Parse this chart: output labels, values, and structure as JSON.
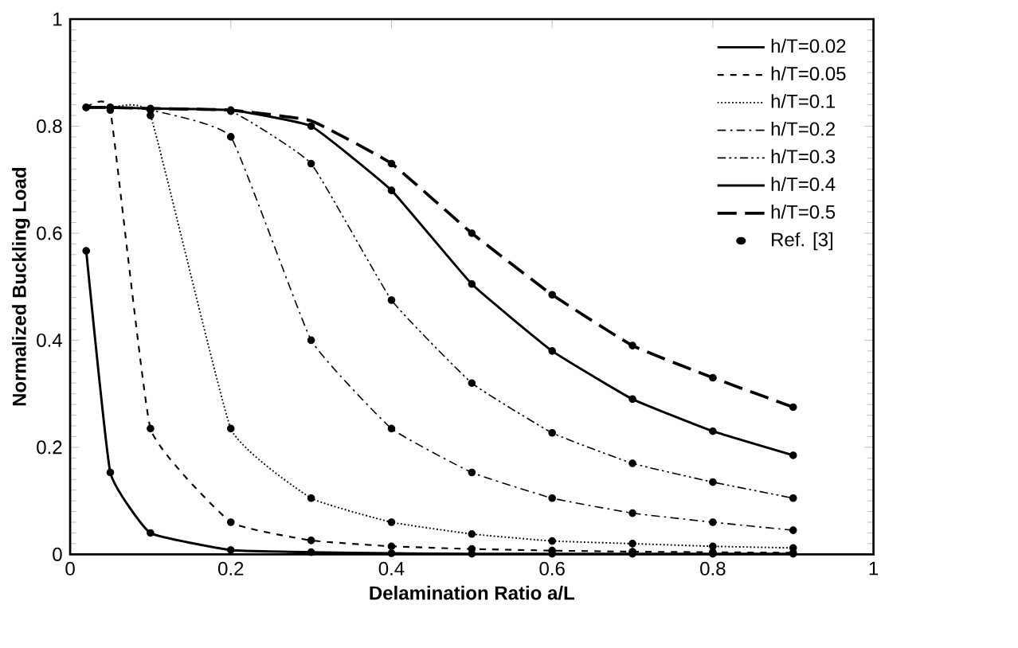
{
  "chart_data": {
    "type": "line",
    "xlabel": "Delamination Ratio a/L",
    "ylabel": "Normalized Buckling Load",
    "x": [
      0.02,
      0.05,
      0.1,
      0.2,
      0.3,
      0.4,
      0.5,
      0.6,
      0.7,
      0.8,
      0.9
    ],
    "series": [
      {
        "name": "h/T=0.02",
        "color": "#000000",
        "line_style": "solid",
        "values": [
          0.835,
          0.835,
          0.833,
          0.83,
          0.8,
          0.68,
          0.505,
          0.38,
          0.29,
          0.23,
          0.185
        ]
      },
      {
        "name": "h/T=0.05",
        "color": "#000000",
        "line_style": "dashed",
        "values": [
          0.835,
          0.83,
          0.235,
          0.06,
          0.026,
          0.015,
          0.01,
          0.007,
          0.005,
          0.004,
          0.003
        ]
      },
      {
        "name": "h/T=0.1",
        "color": "#000000",
        "line_style": "dotted",
        "values": [
          0.835,
          0.835,
          0.82,
          0.235,
          0.105,
          0.06,
          0.038,
          0.025,
          0.02,
          0.015,
          0.012
        ]
      },
      {
        "name": "h/T=0.2",
        "color": "#000000",
        "line_style": "dashdot",
        "values": [
          0.835,
          0.835,
          0.83,
          0.78,
          0.4,
          0.235,
          0.153,
          0.105,
          0.077,
          0.06,
          0.045
        ]
      },
      {
        "name": "h/T=0.3",
        "color": "#000000",
        "line_style": "dashdotdot",
        "values": [
          0.835,
          0.835,
          0.833,
          0.828,
          0.73,
          0.475,
          0.32,
          0.227,
          0.17,
          0.135,
          0.105
        ]
      },
      {
        "name": "h/T=0.4",
        "color": "#000000",
        "line_style": "solid",
        "values": [
          0.567,
          0.153,
          0.04,
          0.008,
          0.004,
          0.002,
          0.001,
          0.001,
          0.001,
          0.001,
          0.001
        ]
      },
      {
        "name": "h/T=0.5",
        "color": "#000000",
        "line_style": "longdash",
        "values": [
          0.835,
          0.835,
          0.833,
          0.83,
          0.81,
          0.73,
          0.6,
          0.485,
          0.39,
          0.33,
          0.275
        ]
      },
      {
        "name": "Ref. [3]",
        "type": "scatter",
        "color": "#000000",
        "marker": "circle",
        "x": [
          0.02,
          0.05,
          0.1,
          0.2,
          0.3,
          0.4,
          0.5,
          0.6,
          0.7,
          0.8,
          0.9,
          0.02,
          0.05,
          0.1,
          0.2,
          0.3,
          0.4,
          0.5,
          0.6,
          0.7,
          0.8,
          0.9,
          0.05,
          0.1,
          0.2,
          0.3,
          0.4,
          0.5,
          0.6,
          0.7,
          0.8,
          0.9,
          0.1,
          0.2,
          0.3,
          0.4,
          0.5,
          0.6,
          0.7,
          0.8,
          0.9,
          0.2,
          0.3,
          0.4,
          0.5,
          0.6,
          0.7,
          0.8,
          0.9,
          0.02,
          0.05,
          0.1,
          0.2,
          0.3,
          0.4,
          0.5,
          0.6,
          0.7,
          0.8,
          0.9,
          0.4,
          0.5,
          0.6,
          0.7,
          0.8,
          0.9
        ],
        "values": [
          0.835,
          0.835,
          0.833,
          0.83,
          0.8,
          0.68,
          0.505,
          0.38,
          0.29,
          0.23,
          0.185,
          0.835,
          0.83,
          0.235,
          0.06,
          0.026,
          0.015,
          0.01,
          0.007,
          0.005,
          0.004,
          0.003,
          0.835,
          0.82,
          0.235,
          0.105,
          0.06,
          0.038,
          0.025,
          0.02,
          0.015,
          0.012,
          0.83,
          0.78,
          0.4,
          0.235,
          0.153,
          0.105,
          0.077,
          0.06,
          0.045,
          0.828,
          0.73,
          0.475,
          0.32,
          0.227,
          0.17,
          0.135,
          0.105,
          0.567,
          0.153,
          0.04,
          0.008,
          0.004,
          0.002,
          0.001,
          0.001,
          0.001,
          0.001,
          0.001,
          0.73,
          0.6,
          0.485,
          0.39,
          0.33,
          0.275
        ]
      }
    ],
    "xlim": [
      0,
      1
    ],
    "ylim": [
      0,
      1
    ],
    "xticks": [
      0,
      0.2,
      0.4,
      0.6,
      0.8,
      1
    ],
    "yticks": [
      0,
      0.2,
      0.4,
      0.6,
      0.8,
      1
    ],
    "grid": false,
    "legend": "top right",
    "marker": "none"
  }
}
